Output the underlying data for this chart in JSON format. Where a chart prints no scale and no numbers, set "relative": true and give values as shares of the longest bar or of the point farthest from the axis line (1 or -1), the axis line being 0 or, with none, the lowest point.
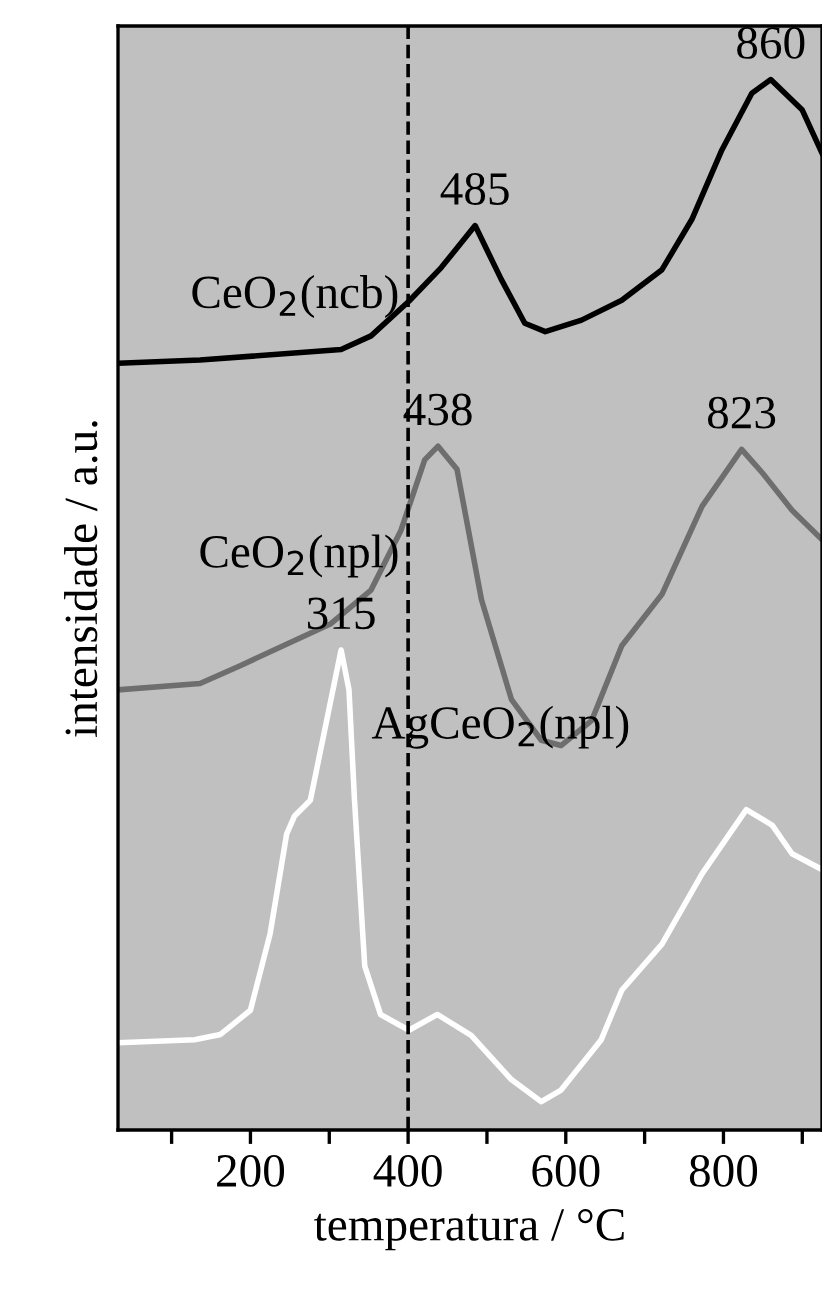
{
  "chart_data": {
    "type": "line",
    "relative": true,
    "xlabel": "temperatura / °C",
    "ylabel": "intensidade / a.u.",
    "xlim": [
      32,
      925
    ],
    "xticks": [
      {
        "value": 100,
        "label": null
      },
      200,
      {
        "value": 300,
        "label": null
      },
      400,
      {
        "value": 500,
        "label": null
      },
      600,
      {
        "value": 700,
        "label": null
      },
      800,
      {
        "value": 900,
        "label": null
      }
    ],
    "grid": false,
    "legend": false,
    "tick_labels": "x",
    "line_style": "solid",
    "marker": "none",
    "ref_lines": [
      {
        "axis": "x",
        "value": 400,
        "color": "#000000",
        "line_style": "dashed"
      }
    ],
    "annotations": [
      {
        "text": "860",
        "x": 860,
        "y": 1.0
      },
      {
        "text": "485",
        "x": 485,
        "y": 0.861
      },
      {
        "text": "438",
        "x": 438,
        "y": 0.651
      },
      {
        "text": "823",
        "x": 823,
        "y": 0.648
      },
      {
        "text": "315",
        "x": 315,
        "y": 0.457
      }
    ],
    "series": [
      {
        "name": "CeO$_{2}$(ncb)",
        "color": "#000000",
        "x": [
          32,
          136,
          315,
          353,
          401,
          442,
          485,
          518,
          548,
          574,
          620,
          671,
          722,
          760,
          798,
          836,
          860,
          900,
          925
        ],
        "values": [
          0.73,
          0.733,
          0.743,
          0.756,
          0.789,
          0.821,
          0.861,
          0.81,
          0.768,
          0.76,
          0.771,
          0.79,
          0.819,
          0.867,
          0.933,
          0.987,
          1.0,
          0.971,
          0.93
        ]
      },
      {
        "name": "CeO$_{2}$(npl)",
        "color": "#6e6e6e",
        "x": [
          32,
          136,
          187,
          302,
          353,
          391,
          421,
          438,
          462,
          493,
          531,
          569,
          594,
          633,
          671,
          722,
          773,
          823,
          850,
          887,
          925
        ],
        "values": [
          0.419,
          0.425,
          0.442,
          0.482,
          0.514,
          0.571,
          0.638,
          0.651,
          0.629,
          0.505,
          0.41,
          0.371,
          0.366,
          0.39,
          0.461,
          0.51,
          0.594,
          0.648,
          0.625,
          0.59,
          0.562
        ]
      },
      {
        "name": "AgCeO$_{2}$(npl)",
        "color": "#ffffff",
        "x": [
          32,
          129,
          162,
          200,
          225,
          246,
          256,
          276,
          315,
          325,
          332,
          345,
          365,
          401,
          437,
          480,
          531,
          569,
          594,
          645,
          671,
          722,
          773,
          829,
          862,
          887,
          925
        ],
        "values": [
          0.083,
          0.086,
          0.091,
          0.114,
          0.187,
          0.282,
          0.299,
          0.314,
          0.457,
          0.419,
          0.314,
          0.156,
          0.11,
          0.095,
          0.11,
          0.09,
          0.048,
          0.027,
          0.038,
          0.086,
          0.133,
          0.177,
          0.244,
          0.305,
          0.29,
          0.263,
          0.248
        ]
      }
    ]
  }
}
